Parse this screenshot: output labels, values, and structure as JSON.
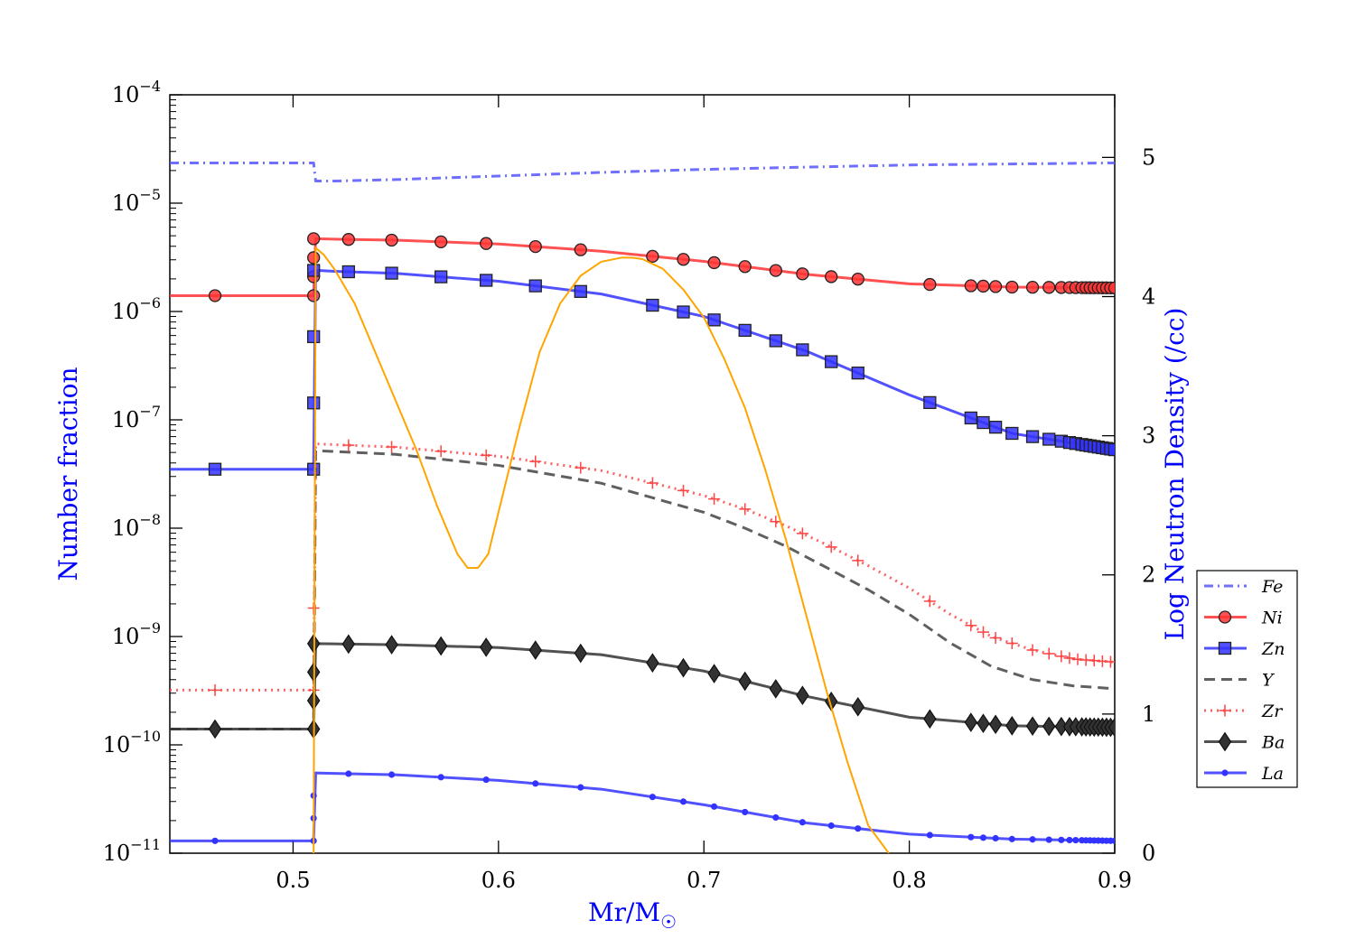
{
  "chart_data": {
    "type": "line",
    "xlabel": "Mr/M",
    "xlabel_subscript": "☉",
    "ylabel_left": "Number fraction",
    "ylabel_right": "Log Neutron Density (/cc)",
    "xlim": [
      0.44,
      0.9
    ],
    "ylim_left": [
      1e-11,
      0.0001
    ],
    "yscale_left": "log",
    "ylim_right": [
      0,
      5.45
    ],
    "x_ticks": [
      "0.5",
      "0.6",
      "0.7",
      "0.8",
      "0.9"
    ],
    "x_tick_values": [
      0.5,
      0.6,
      0.7,
      0.8,
      0.9
    ],
    "y_left_ticks": [
      {
        "value": 1e-11,
        "base": "10",
        "exp": "−11"
      },
      {
        "value": 1e-10,
        "base": "10",
        "exp": "−10"
      },
      {
        "value": 1e-09,
        "base": "10",
        "exp": "−9"
      },
      {
        "value": 1e-08,
        "base": "10",
        "exp": "−8"
      },
      {
        "value": 1e-07,
        "base": "10",
        "exp": "−7"
      },
      {
        "value": 1e-06,
        "base": "10",
        "exp": "−6"
      },
      {
        "value": 1e-05,
        "base": "10",
        "exp": "−5"
      },
      {
        "value": 0.0001,
        "base": "10",
        "exp": "−4"
      }
    ],
    "y_right_ticks": [
      "0",
      "1",
      "2",
      "3",
      "4",
      "5"
    ],
    "y_right_tick_values": [
      0,
      1,
      2,
      3,
      4,
      5
    ],
    "legend_position": "right",
    "series": [
      {
        "name": "Fe",
        "color": "#5555ff",
        "dash": "dashdot",
        "marker": "none",
        "axis": "left",
        "x": [
          0.44,
          0.51,
          0.511,
          0.52,
          0.55,
          0.6,
          0.65,
          0.7,
          0.75,
          0.8,
          0.85,
          0.9
        ],
        "y": [
          2.35e-05,
          2.35e-05,
          1.6e-05,
          1.6e-05,
          1.65e-05,
          1.78e-05,
          1.92e-05,
          2.05e-05,
          2.15e-05,
          2.25e-05,
          2.3e-05,
          2.35e-05
        ]
      },
      {
        "name": "Ni",
        "color": "#ff3333",
        "dash": "solid",
        "marker": "circle",
        "axis": "left",
        "x": [
          0.44,
          0.51,
          0.511,
          0.52,
          0.55,
          0.6,
          0.65,
          0.7,
          0.75,
          0.8,
          0.85,
          0.9
        ],
        "y": [
          1.4e-06,
          1.4e-06,
          4.7e-06,
          4.65e-06,
          4.55e-06,
          4.2e-06,
          3.6e-06,
          2.9e-06,
          2.2e-06,
          1.8e-06,
          1.68e-06,
          1.65e-06
        ],
        "marker_x": [
          0.462,
          0.51,
          0.51,
          0.51,
          0.51,
          0.527,
          0.548,
          0.572,
          0.594,
          0.618,
          0.64,
          0.675,
          0.69,
          0.705,
          0.72,
          0.735,
          0.748,
          0.762,
          0.775,
          0.81,
          0.83,
          0.836,
          0.842,
          0.85,
          0.86,
          0.868,
          0.874,
          0.878,
          0.881,
          0.884,
          0.886,
          0.888,
          0.89,
          0.892,
          0.894,
          0.896,
          0.898,
          0.9
        ]
      },
      {
        "name": "Zn",
        "color": "#3333ff",
        "dash": "solid",
        "marker": "square",
        "axis": "left",
        "x": [
          0.44,
          0.51,
          0.511,
          0.52,
          0.55,
          0.6,
          0.65,
          0.7,
          0.75,
          0.8,
          0.85,
          0.9
        ],
        "y": [
          3.5e-08,
          3.5e-08,
          2.4e-06,
          2.35e-06,
          2.25e-06,
          1.9e-06,
          1.45e-06,
          9e-07,
          4.3e-07,
          1.7e-07,
          7.5e-08,
          5.3e-08
        ],
        "marker_x": [
          0.462,
          0.51,
          0.51,
          0.51,
          0.51,
          0.527,
          0.548,
          0.572,
          0.594,
          0.618,
          0.64,
          0.675,
          0.69,
          0.705,
          0.72,
          0.735,
          0.748,
          0.762,
          0.775,
          0.81,
          0.83,
          0.836,
          0.842,
          0.85,
          0.86,
          0.868,
          0.874,
          0.878,
          0.881,
          0.884,
          0.886,
          0.888,
          0.89,
          0.892,
          0.894,
          0.896,
          0.898,
          0.9
        ]
      },
      {
        "name": "Y",
        "color": "#444444",
        "dash": "dashed",
        "marker": "none",
        "axis": "left",
        "x": [
          0.44,
          0.51,
          0.511,
          0.52,
          0.55,
          0.6,
          0.65,
          0.7,
          0.72,
          0.74,
          0.76,
          0.78,
          0.8,
          0.82,
          0.84,
          0.86,
          0.88,
          0.9
        ],
        "y": [
          1.4e-10,
          1.4e-10,
          5.2e-08,
          5.1e-08,
          4.8e-08,
          3.8e-08,
          2.6e-08,
          1.4e-08,
          1e-08,
          6.8e-09,
          4.3e-09,
          2.7e-09,
          1.6e-09,
          8.7e-10,
          5.3e-10,
          4e-10,
          3.5e-10,
          3.3e-10
        ]
      },
      {
        "name": "Zr",
        "color": "#ff4444",
        "dash": "dotted",
        "marker": "plus",
        "axis": "left",
        "x": [
          0.44,
          0.51,
          0.511,
          0.52,
          0.55,
          0.6,
          0.65,
          0.7,
          0.72,
          0.74,
          0.76,
          0.78,
          0.8,
          0.82,
          0.84,
          0.86,
          0.88,
          0.9
        ],
        "y": [
          3.2e-10,
          3.2e-10,
          6e-08,
          5.9e-08,
          5.6e-08,
          4.6e-08,
          3.4e-08,
          2e-08,
          1.5e-08,
          1.05e-08,
          7e-09,
          4.5e-09,
          2.8e-09,
          1.6e-09,
          1e-09,
          7.5e-10,
          6.2e-10,
          5.8e-10
        ],
        "marker_x": [
          0.462,
          0.51,
          0.51,
          0.527,
          0.548,
          0.572,
          0.594,
          0.618,
          0.64,
          0.675,
          0.69,
          0.705,
          0.72,
          0.735,
          0.748,
          0.762,
          0.775,
          0.81,
          0.83,
          0.836,
          0.842,
          0.85,
          0.86,
          0.868,
          0.874,
          0.878,
          0.882,
          0.886,
          0.89,
          0.894,
          0.898
        ]
      },
      {
        "name": "Ba",
        "color": "#333333",
        "dash": "solid",
        "marker": "diamond",
        "axis": "left",
        "x": [
          0.44,
          0.51,
          0.511,
          0.52,
          0.55,
          0.6,
          0.65,
          0.7,
          0.75,
          0.8,
          0.85,
          0.9
        ],
        "y": [
          1.4e-10,
          1.4e-10,
          8.6e-10,
          8.55e-10,
          8.4e-10,
          7.9e-10,
          6.8e-10,
          4.8e-10,
          2.8e-10,
          1.8e-10,
          1.5e-10,
          1.45e-10
        ],
        "marker_x": [
          0.462,
          0.51,
          0.51,
          0.51,
          0.51,
          0.527,
          0.548,
          0.572,
          0.594,
          0.618,
          0.64,
          0.675,
          0.69,
          0.705,
          0.72,
          0.735,
          0.748,
          0.762,
          0.775,
          0.81,
          0.83,
          0.836,
          0.842,
          0.85,
          0.86,
          0.868,
          0.874,
          0.878,
          0.881,
          0.884,
          0.886,
          0.888,
          0.89,
          0.892,
          0.894,
          0.896,
          0.898,
          0.9
        ]
      },
      {
        "name": "La",
        "color": "#3333ff",
        "dash": "solid",
        "marker": "dot",
        "axis": "left",
        "x": [
          0.44,
          0.51,
          0.511,
          0.52,
          0.55,
          0.6,
          0.65,
          0.7,
          0.75,
          0.8,
          0.85,
          0.9
        ],
        "y": [
          1.3e-11,
          1.3e-11,
          5.5e-11,
          5.45e-11,
          5.3e-11,
          4.7e-11,
          3.9e-11,
          2.8e-11,
          1.9e-11,
          1.5e-11,
          1.35e-11,
          1.3e-11
        ],
        "marker_x": [
          0.462,
          0.51,
          0.51,
          0.51,
          0.527,
          0.548,
          0.572,
          0.594,
          0.618,
          0.64,
          0.675,
          0.69,
          0.705,
          0.72,
          0.735,
          0.748,
          0.762,
          0.775,
          0.81,
          0.83,
          0.836,
          0.842,
          0.85,
          0.86,
          0.868,
          0.874,
          0.878,
          0.881,
          0.884,
          0.886,
          0.888,
          0.89,
          0.892,
          0.894,
          0.896,
          0.898,
          0.9
        ]
      },
      {
        "name": "",
        "color": "#ffa500",
        "dash": "solid",
        "marker": "none",
        "axis": "right",
        "in_legend": false,
        "x": [
          0.51,
          0.511,
          0.515,
          0.52,
          0.53,
          0.54,
          0.55,
          0.56,
          0.57,
          0.58,
          0.585,
          0.59,
          0.595,
          0.6,
          0.61,
          0.62,
          0.63,
          0.64,
          0.65,
          0.66,
          0.665,
          0.67,
          0.68,
          0.69,
          0.7,
          0.71,
          0.72,
          0.73,
          0.74,
          0.75,
          0.76,
          0.77,
          0.78,
          0.79
        ],
        "y": [
          0,
          4.35,
          4.3,
          4.2,
          3.95,
          3.6,
          3.25,
          2.9,
          2.5,
          2.15,
          2.05,
          2.05,
          2.15,
          2.45,
          3.05,
          3.6,
          3.95,
          4.15,
          4.25,
          4.28,
          4.28,
          4.27,
          4.2,
          4.05,
          3.85,
          3.55,
          3.2,
          2.75,
          2.25,
          1.7,
          1.15,
          0.65,
          0.2,
          0
        ]
      }
    ]
  }
}
